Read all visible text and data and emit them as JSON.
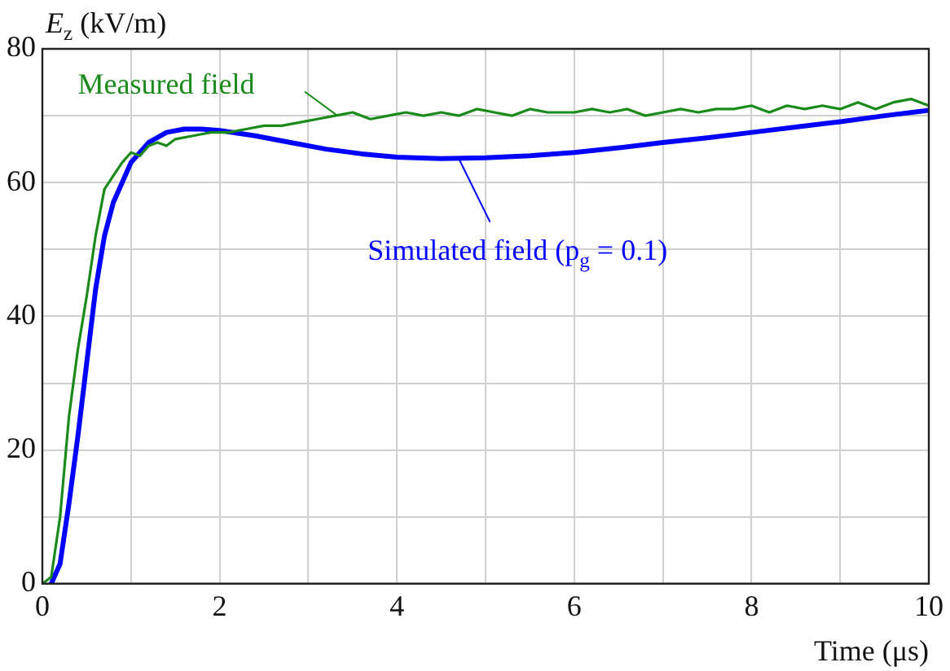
{
  "chart_data": {
    "type": "line",
    "xlabel": "Time (μs)",
    "ylabel": "E$_{z}$ (kV/m)",
    "xlim": [
      0,
      10
    ],
    "ylim": [
      0,
      80
    ],
    "xticks": [
      0,
      {
        "value": 1,
        "label": null
      },
      2,
      {
        "value": 3,
        "label": null
      },
      4,
      {
        "value": 5,
        "label": null
      },
      6,
      {
        "value": 7,
        "label": null
      },
      8,
      {
        "value": 9,
        "label": null
      },
      10
    ],
    "yticks": [
      0,
      {
        "value": 10,
        "label": null
      },
      20,
      {
        "value": 30,
        "label": null
      },
      40,
      {
        "value": 50,
        "label": null
      },
      60,
      {
        "value": 70,
        "label": null
      },
      80
    ],
    "grid": true,
    "legend": "top left",
    "marker": "none",
    "line_style": "solid",
    "series": [
      {
        "name": "Measured field",
        "color": "#1a8a1a",
        "x": [
          0,
          0.05,
          0.1,
          0.2,
          0.3,
          0.4,
          0.5,
          0.6,
          0.7,
          0.8,
          0.9,
          1.0,
          1.1,
          1.2,
          1.3,
          1.4,
          1.5,
          1.7,
          1.9,
          2.1,
          2.3,
          2.5,
          2.7,
          2.9,
          3.1,
          3.3,
          3.5,
          3.7,
          3.9,
          4.1,
          4.3,
          4.5,
          4.7,
          4.9,
          5.1,
          5.3,
          5.5,
          5.7,
          6.0,
          6.2,
          6.4,
          6.6,
          6.8,
          7.0,
          7.2,
          7.4,
          7.6,
          7.8,
          8.0,
          8.2,
          8.4,
          8.6,
          8.8,
          9.0,
          9.2,
          9.4,
          9.6,
          9.8,
          10
        ],
        "values": [
          0,
          0.5,
          1,
          10,
          25,
          35,
          43,
          52,
          59,
          61,
          63,
          64.5,
          64,
          65.5,
          66,
          65.5,
          66.5,
          67,
          67.5,
          67.5,
          68,
          68.5,
          68.5,
          69,
          69.5,
          70,
          70.5,
          69.5,
          70,
          70.5,
          70,
          70.5,
          70,
          71,
          70.5,
          70,
          71,
          70.5,
          70.5,
          71,
          70.5,
          71,
          70,
          70.5,
          71,
          70.5,
          71,
          71,
          71.5,
          70.5,
          71.5,
          71,
          71.5,
          71,
          72,
          71,
          72,
          72.5,
          71.5
        ]
      },
      {
        "name": "Simulated field (p$_{g}$ = 0.1)",
        "color": "#0000ff",
        "x": [
          0.1,
          0.2,
          0.3,
          0.4,
          0.5,
          0.6,
          0.7,
          0.8,
          0.9,
          1.0,
          1.2,
          1.4,
          1.6,
          1.8,
          2.0,
          2.4,
          2.8,
          3.2,
          3.6,
          4.0,
          4.5,
          5.0,
          5.5,
          6.0,
          6.5,
          7.0,
          7.5,
          8.0,
          8.5,
          9.0,
          9.5,
          10
        ],
        "values": [
          0,
          3,
          12,
          22,
          33,
          44,
          52,
          57,
          60,
          63,
          66,
          67.5,
          68,
          68,
          67.8,
          67,
          66,
          65,
          64.3,
          63.8,
          63.6,
          63.7,
          64,
          64.5,
          65.2,
          66,
          66.7,
          67.5,
          68.3,
          69.1,
          70,
          70.8
        ]
      }
    ]
  }
}
